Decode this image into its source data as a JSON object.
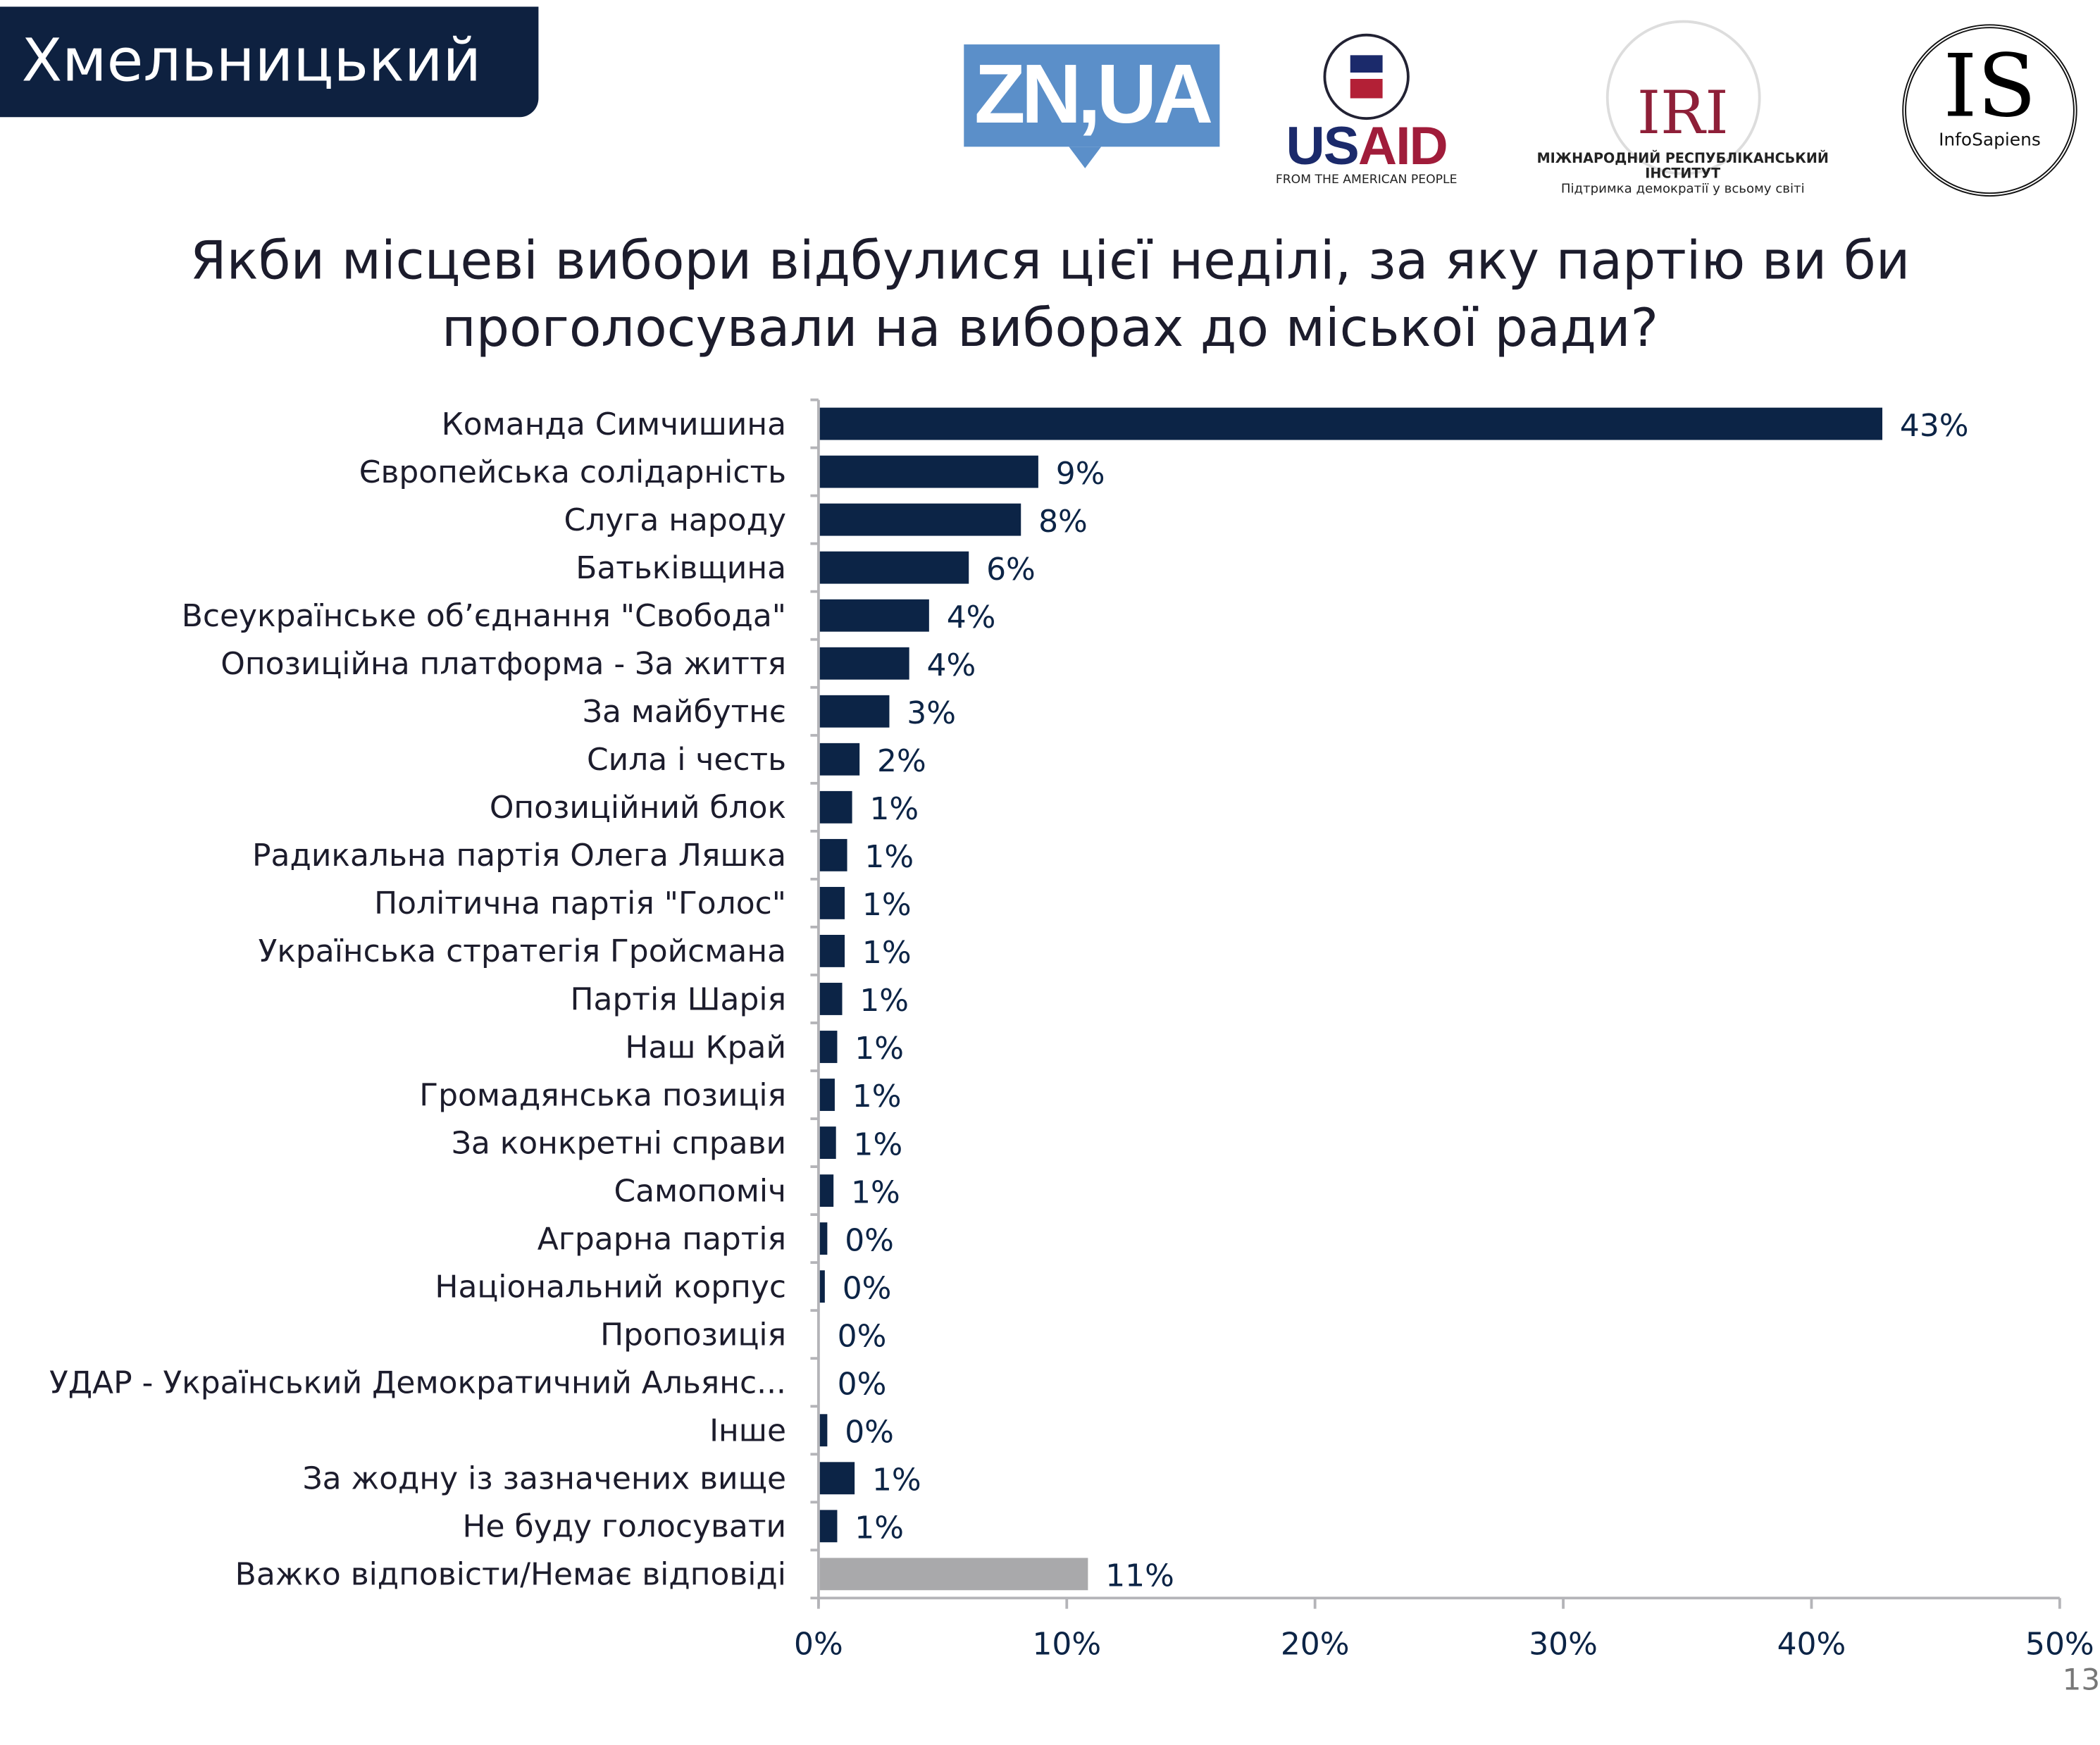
{
  "region": "Хмельницький",
  "logos": {
    "zn": "ZN,UA",
    "usaid": {
      "word_us": "US",
      "word_aid": "AID",
      "tagline": "FROM THE AMERICAN PEOPLE"
    },
    "iri": {
      "word": "IRI",
      "name": "МІЖНАРОДНИЙ РЕСПУБЛІКАНСЬКИЙ ІНСТИТУТ",
      "tagline": "Підтримка демократії у всьому світі"
    },
    "infosapiens": {
      "word": "IS",
      "name": "InfoSapiens"
    }
  },
  "page_number": "13",
  "chart_data": {
    "type": "bar",
    "orientation": "horizontal",
    "title_lines": [
      "Якби місцеві вибори відбулися цієї неділі, за яку партію ви би",
      "проголосували на виборах до міської ради?"
    ],
    "categories": [
      "Команда Симчишина",
      "Європейська солідарність",
      "Слуга народу",
      "Батьківщина",
      "Всеукраїнське об’єднання \"Свобода\"",
      "Опозиційна платформа - За життя",
      "За майбутнє",
      "Сила і честь",
      "Опозиційний блок",
      "Радикальна партія Олега Ляшка",
      "Політична партія \"Голос\"",
      "Українська стратегія Гройсмана",
      "Партія Шарія",
      "Наш Край",
      "Громадянська позиція",
      "За конкретні справи",
      "Самопоміч",
      "Аграрна партія",
      "Національний корпус",
      "Пропозиція",
      "УДАР - Український Демократичний Альянс...",
      "Інше",
      "За жодну із зазначених вище",
      "Не буду голосувати",
      "Важко відповісти/Немає відповіді"
    ],
    "values": [
      42.8,
      8.8,
      8.1,
      6.0,
      4.4,
      3.6,
      2.8,
      1.6,
      1.3,
      1.1,
      1.0,
      1.0,
      0.9,
      0.7,
      0.6,
      0.65,
      0.55,
      0.3,
      0.2,
      0.0,
      0.0,
      0.3,
      1.4,
      0.7,
      10.8
    ],
    "data_labels": [
      "43%",
      "9%",
      "8%",
      "6%",
      "4%",
      "4%",
      "3%",
      "2%",
      "1%",
      "1%",
      "1%",
      "1%",
      "1%",
      "1%",
      "1%",
      "1%",
      "1%",
      "0%",
      "0%",
      "0%",
      "0%",
      "0%",
      "1%",
      "1%",
      "11%"
    ],
    "bar_colors": {
      "default": "#0c2446",
      "last": "#a9a9ab"
    },
    "xlim": [
      0,
      50
    ],
    "xticks": [
      "0%",
      "10%",
      "20%",
      "30%",
      "40%",
      "50%"
    ],
    "grid": false,
    "legend": "none"
  }
}
